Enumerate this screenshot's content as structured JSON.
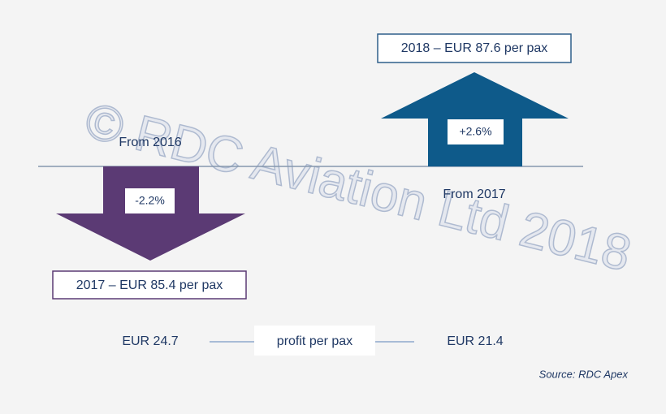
{
  "increase": {
    "result": "2018 – EUR 87.6 per pax",
    "change": "+2.6%",
    "from": "From 2017"
  },
  "decrease": {
    "result": "2017 – EUR 85.4 per pax",
    "change": "-2.2%",
    "from": "From 2016"
  },
  "profit": {
    "left": "EUR 24.7",
    "label": "profit per pax",
    "right": "EUR 21.4"
  },
  "source": "Source: RDC Apex",
  "watermark": "© RDC Aviation Ltd 2018"
}
